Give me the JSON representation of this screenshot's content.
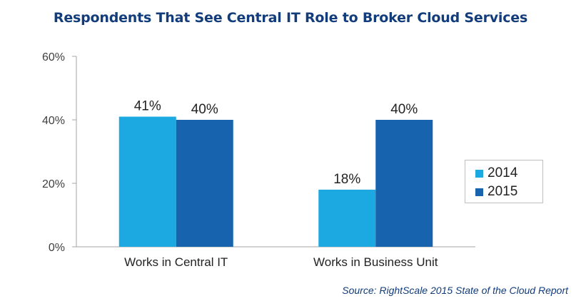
{
  "header": {
    "title": "Respondents That See Central IT Role to Broker Cloud Services"
  },
  "footer": {
    "source": "Source: RightScale 2015 State of the Cloud Report"
  },
  "legend": {
    "items": [
      {
        "label": "2014",
        "color": "#1ca8e0"
      },
      {
        "label": "2015",
        "color": "#1763ad"
      }
    ]
  },
  "chart_data": {
    "type": "bar",
    "title": "Respondents That See Central IT Role to Broker Cloud Services",
    "xlabel": "",
    "ylabel": "",
    "categories": [
      "Works in Central IT",
      "Works in Business Unit"
    ],
    "series": [
      {
        "name": "2014",
        "values": [
          41,
          18
        ],
        "labels": [
          "41%",
          "18%"
        ],
        "color": "#1ca8e0"
      },
      {
        "name": "2015",
        "values": [
          40,
          40
        ],
        "labels": [
          "40%",
          "40%"
        ],
        "color": "#1763ad"
      }
    ],
    "ylim": [
      0,
      60
    ],
    "yticks": [
      0,
      20,
      40,
      60
    ],
    "ytick_labels": [
      "0%",
      "20%",
      "40%",
      "60%"
    ],
    "grid": false,
    "legend_position": "right"
  }
}
